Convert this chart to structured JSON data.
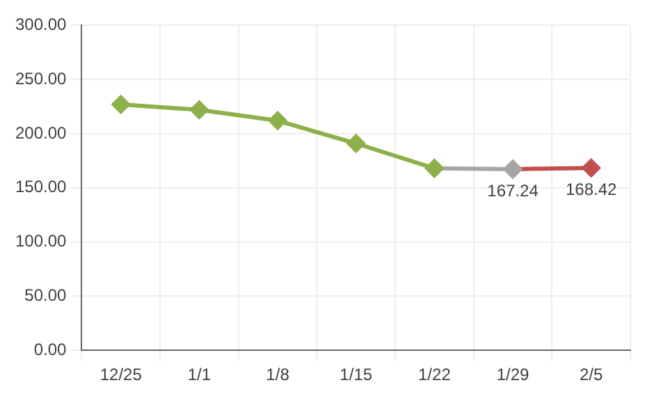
{
  "chart_data": {
    "type": "line",
    "categories": [
      "12/25",
      "1/1",
      "1/8",
      "1/15",
      "1/22",
      "1/29",
      "2/5"
    ],
    "series": [
      {
        "color": "#8db04a",
        "values": [
          227,
          222,
          212,
          191,
          168,
          null,
          null
        ]
      },
      {
        "color": "#a6a6a6",
        "values": [
          null,
          null,
          null,
          null,
          168,
          167.24,
          null
        ],
        "value_labels": [
          null,
          null,
          null,
          null,
          null,
          "167.24",
          null
        ]
      },
      {
        "color": "#c0504d",
        "values": [
          null,
          null,
          null,
          null,
          null,
          167.24,
          168.42
        ],
        "value_labels": [
          null,
          null,
          null,
          null,
          null,
          null,
          "168.42"
        ]
      }
    ],
    "ylim": [
      0,
      300
    ],
    "yticks": [
      {
        "value": 0,
        "label": "0.00"
      },
      {
        "value": 50,
        "label": "50.00"
      },
      {
        "value": 100,
        "label": "100.00"
      },
      {
        "value": 150,
        "label": "150.00"
      },
      {
        "value": 200,
        "label": "200.00"
      },
      {
        "value": 250,
        "label": "250.00"
      },
      {
        "value": 300,
        "label": "300.00"
      }
    ],
    "grid": true,
    "legend": false,
    "marker": "diamond",
    "line_style": "solid"
  }
}
